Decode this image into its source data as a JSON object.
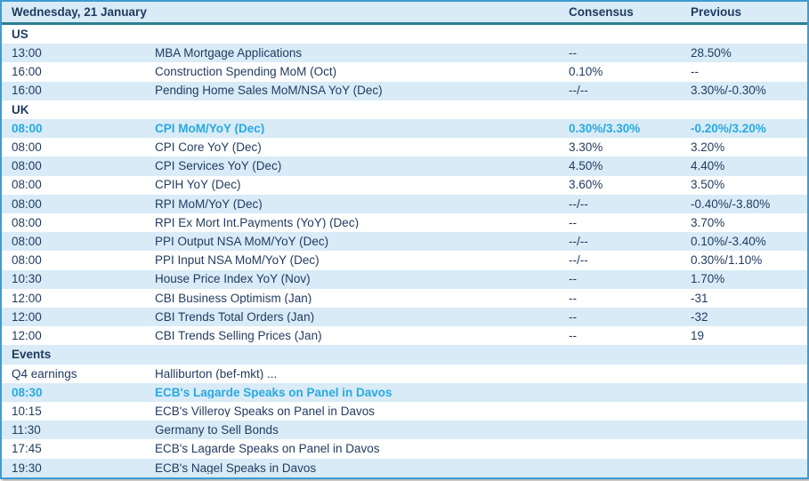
{
  "calendar": {
    "title": "Wednesday, 21 January",
    "columns": {
      "consensus": "Consensus",
      "previous": "Previous"
    },
    "colors": {
      "highlight_text": "#29A9E1",
      "text_navy": "#1F3A5F",
      "row_stripe": "#D8EBF7",
      "outer_border": "#3E9CD1",
      "header_divider": "#2A7F96"
    },
    "sections": [
      {
        "label": "US",
        "rows": [
          {
            "time": "13:00",
            "event": "MBA Mortgage Applications",
            "consensus": "--",
            "previous": "28.50%",
            "highlight": false
          },
          {
            "time": "16:00",
            "event": "Construction Spending MoM (Oct)",
            "consensus": "0.10%",
            "previous": "--",
            "highlight": false
          },
          {
            "time": "16:00",
            "event": "Pending Home Sales MoM/NSA YoY (Dec)",
            "consensus": "--/--",
            "previous": "3.30%/-0.30%",
            "highlight": false
          }
        ]
      },
      {
        "label": "UK",
        "rows": [
          {
            "time": "08:00",
            "event": "CPI MoM/YoY (Dec)",
            "consensus": "0.30%/3.30%",
            "previous": "-0.20%/3.20%",
            "highlight": true
          },
          {
            "time": "08:00",
            "event": "CPI Core YoY (Dec)",
            "consensus": "3.30%",
            "previous": "3.20%",
            "highlight": false
          },
          {
            "time": "08:00",
            "event": "CPI Services YoY (Dec)",
            "consensus": "4.50%",
            "previous": "4.40%",
            "highlight": false
          },
          {
            "time": "08:00",
            "event": "CPIH YoY (Dec)",
            "consensus": "3.60%",
            "previous": "3.50%",
            "highlight": false
          },
          {
            "time": "08:00",
            "event": "RPI MoM/YoY (Dec)",
            "consensus": "--/--",
            "previous": "-0.40%/-3.80%",
            "highlight": false
          },
          {
            "time": "08:00",
            "event": "RPI Ex Mort Int.Payments (YoY) (Dec)",
            "consensus": "--",
            "previous": "3.70%",
            "highlight": false
          },
          {
            "time": "08:00",
            "event": "PPI Output NSA MoM/YoY (Dec)",
            "consensus": "--/--",
            "previous": "0.10%/-3.40%",
            "highlight": false
          },
          {
            "time": "08:00",
            "event": "PPI Input NSA MoM/YoY (Dec)",
            "consensus": "--/--",
            "previous": "0.30%/1.10%",
            "highlight": false
          },
          {
            "time": "10:30",
            "event": "House Price Index YoY (Nov)",
            "consensus": "--",
            "previous": "1.70%",
            "highlight": false
          },
          {
            "time": "12:00",
            "event": "CBI Business Optimism (Jan)",
            "consensus": "--",
            "previous": "-31",
            "highlight": false
          },
          {
            "time": "12:00",
            "event": "CBI Trends Total Orders (Jan)",
            "consensus": "--",
            "previous": "-32",
            "highlight": false
          },
          {
            "time": "12:00",
            "event": "CBI Trends Selling Prices (Jan)",
            "consensus": "--",
            "previous": "19",
            "highlight": false
          }
        ]
      },
      {
        "label": "Events",
        "rows": [
          {
            "time": "Q4 earnings",
            "event": "Halliburton (bef-mkt) ...",
            "consensus": "",
            "previous": "",
            "highlight": false
          },
          {
            "time": "08:30",
            "event": "ECB's Lagarde Speaks on Panel in Davos",
            "consensus": "",
            "previous": "",
            "highlight": true
          },
          {
            "time": "10:15",
            "event": "ECB's Villeroy Speaks on Panel in Davos",
            "consensus": "",
            "previous": "",
            "highlight": false
          },
          {
            "time": "11:30",
            "event": "Germany to Sell Bonds",
            "consensus": "",
            "previous": "",
            "highlight": false
          },
          {
            "time": "17:45",
            "event": "ECB's Lagarde Speaks on Panel in Davos",
            "consensus": "",
            "previous": "",
            "highlight": false
          },
          {
            "time": "19:30",
            "event": "ECB's Nagel Speaks in Davos",
            "consensus": "",
            "previous": "",
            "highlight": false
          }
        ]
      }
    ]
  }
}
